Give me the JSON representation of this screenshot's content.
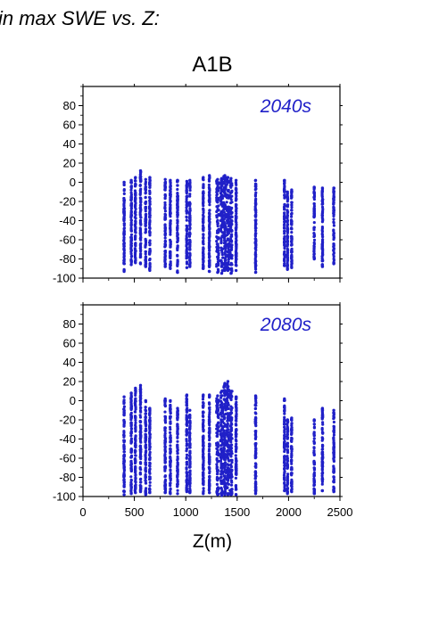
{
  "heading": "in max SWE vs. Z:",
  "title": "A1B",
  "xlabel": "Z(m)",
  "colors": {
    "points": "#2020c8",
    "axis": "#000000"
  },
  "chart_data": [
    {
      "type": "scatter",
      "annotation": "2040s",
      "xlim": [
        0,
        2500
      ],
      "ylim": [
        -100,
        100
      ],
      "yticks": [
        80,
        60,
        40,
        20,
        0,
        -20,
        -40,
        -60,
        -80,
        -100
      ],
      "xticks": [
        0,
        500,
        1000,
        1500,
        2000,
        2500
      ],
      "show_x_tick_labels": false,
      "elevation_columns": [
        {
          "z": 400,
          "min": -93,
          "max": 0
        },
        {
          "z": 470,
          "min": -86,
          "max": 2
        },
        {
          "z": 510,
          "min": -84,
          "max": 5
        },
        {
          "z": 560,
          "min": -85,
          "max": 12
        },
        {
          "z": 610,
          "min": -88,
          "max": 3
        },
        {
          "z": 650,
          "min": -92,
          "max": 5
        },
        {
          "z": 800,
          "min": -88,
          "max": 3
        },
        {
          "z": 850,
          "min": -90,
          "max": 2
        },
        {
          "z": 920,
          "min": -94,
          "max": 2
        },
        {
          "z": 1010,
          "min": -89,
          "max": 1
        },
        {
          "z": 1040,
          "min": -88,
          "max": 2
        },
        {
          "z": 1170,
          "min": -90,
          "max": 5
        },
        {
          "z": 1230,
          "min": -93,
          "max": 7
        },
        {
          "z": 1310,
          "min": -94,
          "max": 3
        },
        {
          "z": 1350,
          "min": -95,
          "max": 4
        },
        {
          "z": 1380,
          "min": -92,
          "max": 7
        },
        {
          "z": 1410,
          "min": -92,
          "max": 5
        },
        {
          "z": 1440,
          "min": -95,
          "max": 4
        },
        {
          "z": 1490,
          "min": -92,
          "max": 2
        },
        {
          "z": 1680,
          "min": -94,
          "max": 2
        },
        {
          "z": 1960,
          "min": -87,
          "max": 2
        },
        {
          "z": 1990,
          "min": -91,
          "max": -10
        },
        {
          "z": 2030,
          "min": -89,
          "max": -8
        },
        {
          "z": 2250,
          "min": -80,
          "max": -5
        },
        {
          "z": 2330,
          "min": -88,
          "max": -6
        },
        {
          "z": 2440,
          "min": -85,
          "max": -6
        }
      ]
    },
    {
      "type": "scatter",
      "annotation": "2080s",
      "xlim": [
        0,
        2500
      ],
      "ylim": [
        -100,
        100
      ],
      "yticks": [
        80,
        60,
        40,
        20,
        0,
        -20,
        -40,
        -60,
        -80,
        -100
      ],
      "xticks": [
        0,
        500,
        1000,
        1500,
        2000,
        2500
      ],
      "show_x_tick_labels": true,
      "elevation_columns": [
        {
          "z": 400,
          "min": -98,
          "max": 4
        },
        {
          "z": 470,
          "min": -97,
          "max": 8
        },
        {
          "z": 510,
          "min": -96,
          "max": 13
        },
        {
          "z": 560,
          "min": -95,
          "max": 16
        },
        {
          "z": 610,
          "min": -98,
          "max": 0
        },
        {
          "z": 650,
          "min": -96,
          "max": -8
        },
        {
          "z": 800,
          "min": -96,
          "max": 2
        },
        {
          "z": 850,
          "min": -97,
          "max": 0
        },
        {
          "z": 920,
          "min": -97,
          "max": -8
        },
        {
          "z": 1010,
          "min": -95,
          "max": 6
        },
        {
          "z": 1040,
          "min": -96,
          "max": -10
        },
        {
          "z": 1170,
          "min": -97,
          "max": 6
        },
        {
          "z": 1230,
          "min": -96,
          "max": 6
        },
        {
          "z": 1310,
          "min": -98,
          "max": 5
        },
        {
          "z": 1350,
          "min": -99,
          "max": 10
        },
        {
          "z": 1380,
          "min": -98,
          "max": 18
        },
        {
          "z": 1410,
          "min": -98,
          "max": 20
        },
        {
          "z": 1440,
          "min": -98,
          "max": 10
        },
        {
          "z": 1490,
          "min": -98,
          "max": 4
        },
        {
          "z": 1680,
          "min": -97,
          "max": 5
        },
        {
          "z": 1960,
          "min": -94,
          "max": 2
        },
        {
          "z": 1990,
          "min": -97,
          "max": -20
        },
        {
          "z": 2030,
          "min": -95,
          "max": -18
        },
        {
          "z": 2250,
          "min": -97,
          "max": -20
        },
        {
          "z": 2330,
          "min": -94,
          "max": -8
        },
        {
          "z": 2440,
          "min": -95,
          "max": -10
        }
      ]
    }
  ]
}
